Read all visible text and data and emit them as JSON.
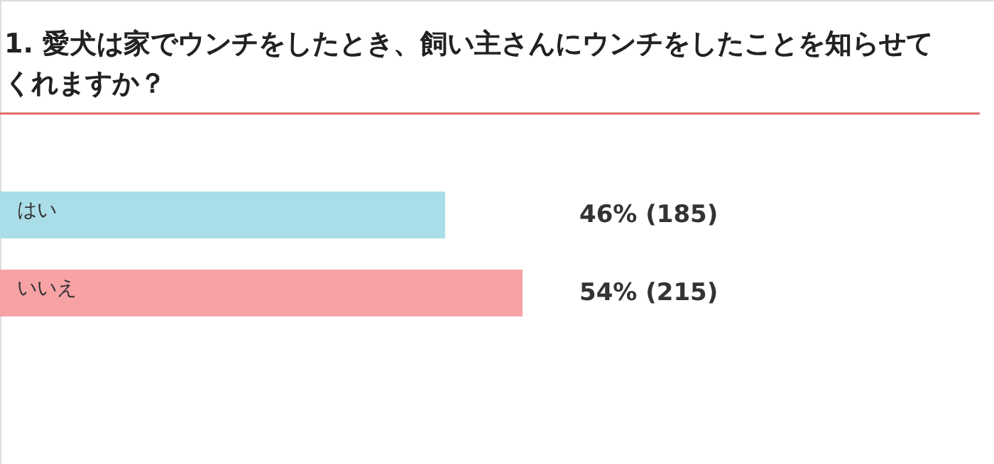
{
  "chart_data": {
    "type": "bar",
    "orientation": "horizontal",
    "title": "1. 愛犬は家でウンチをしたとき、飼い主さんにウンチをしたことを知らせてくれますか？",
    "categories": [
      "はい",
      "いいえ"
    ],
    "values": [
      46,
      54
    ],
    "colors": [
      "#a9dde8",
      "#f7a3a6"
    ],
    "value_labels": [
      "46% (185)",
      "54% (215)"
    ],
    "tick_labels": false
  }
}
